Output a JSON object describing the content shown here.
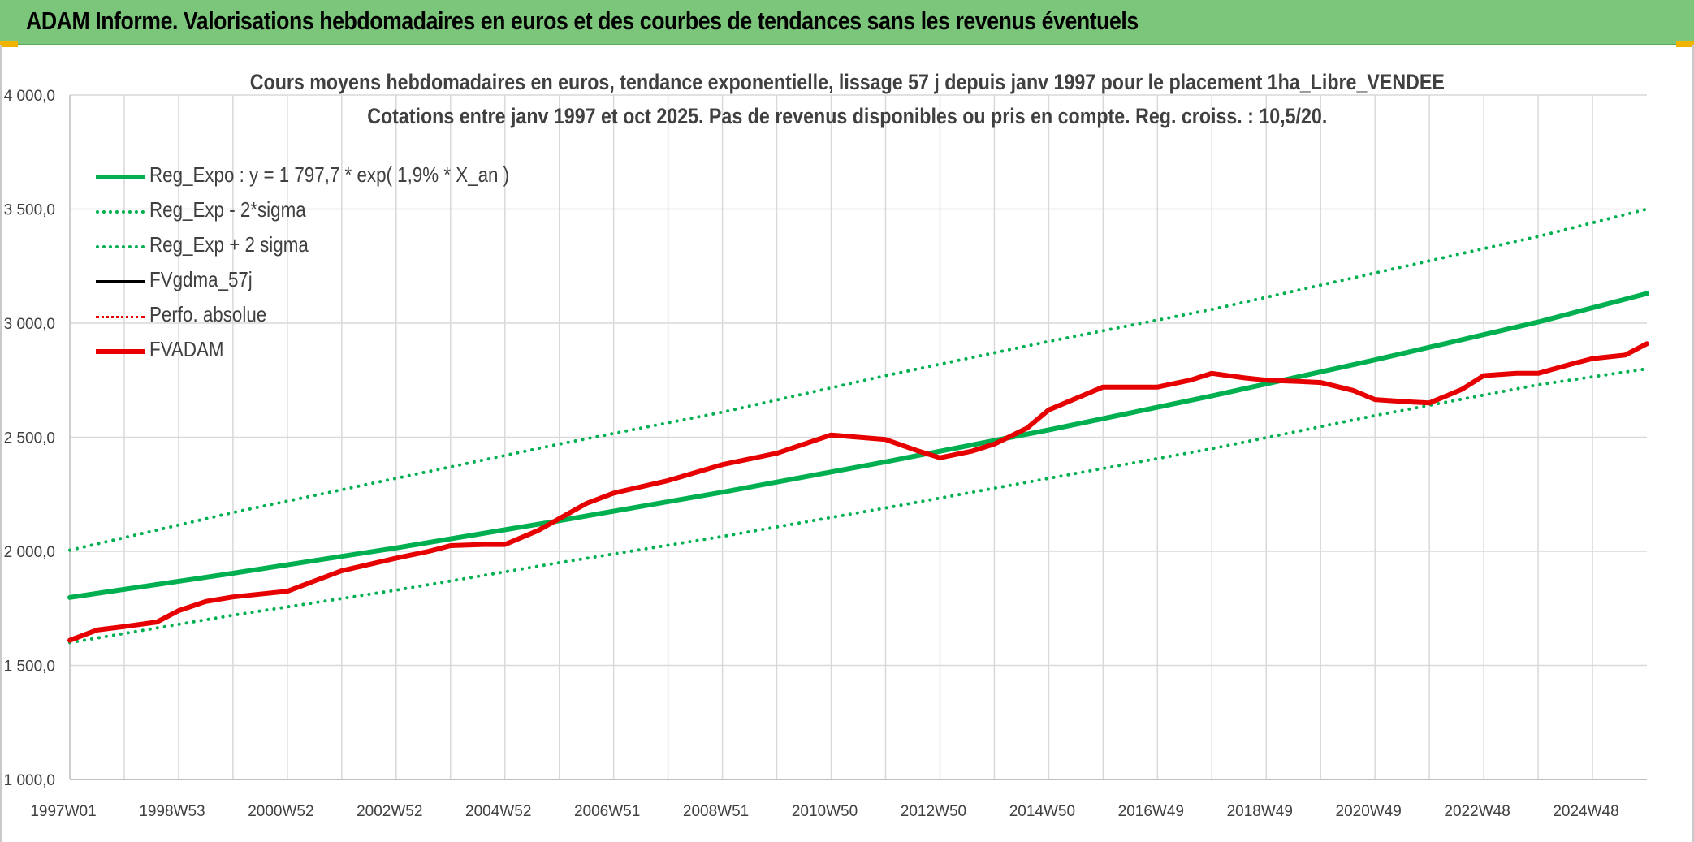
{
  "header": {
    "title": "ADAM Informe. Valorisations hebdomadaires en euros et des courbes de tendances sans les revenus éventuels"
  },
  "colors": {
    "header_bg": "#7bc67b",
    "regression": "#00b050",
    "fvadam": "#e60000",
    "perfo": "#e60000",
    "fvgdma": "#000000",
    "grid": "#d9d9d9"
  },
  "chart_data": {
    "type": "line",
    "title": [
      "Cours moyens hebdomadaires en euros, tendance exponentielle, lissage 57 j depuis janv 1997 pour le placement 1ha_Libre_VENDEE",
      "Cotations entre janv 1997 et oct 2025. Pas de revenus disponibles ou pris en compte. Reg. croiss. : 10,5/20."
    ],
    "xlabel": "",
    "ylabel": "",
    "ylim": [
      1000,
      4000
    ],
    "xlim": [
      1997.0,
      2026.0
    ],
    "y_ticks": [
      1000,
      1500,
      2000,
      2500,
      3000,
      3500,
      4000
    ],
    "y_tick_labels": [
      "1 000,0",
      "1 500,0",
      "2 000,0",
      "2 500,0",
      "3 000,0",
      "3 500,0",
      "4 000,0"
    ],
    "x_gridlines": [
      1998.0,
      1999.0,
      2000.0,
      2001.0,
      2002.0,
      2003.0,
      2004.0,
      2005.0,
      2006.0,
      2007.0,
      2008.0,
      2009.0,
      2010.0,
      2011.0,
      2012.0,
      2013.0,
      2014.0,
      2015.0,
      2016.0,
      2017.0,
      2018.0,
      2019.0,
      2020.0,
      2021.0,
      2022.0,
      2023.0,
      2024.0,
      2025.0
    ],
    "x_ticks": [
      {
        "x": 1997.0,
        "label": "1997W01"
      },
      {
        "x": 1999.0,
        "label": "1998W53"
      },
      {
        "x": 2001.0,
        "label": "2000W52"
      },
      {
        "x": 2003.0,
        "label": "2002W52"
      },
      {
        "x": 2005.0,
        "label": "2004W52"
      },
      {
        "x": 2007.0,
        "label": "2006W51"
      },
      {
        "x": 2009.0,
        "label": "2008W51"
      },
      {
        "x": 2011.0,
        "label": "2010W50"
      },
      {
        "x": 2013.0,
        "label": "2012W50"
      },
      {
        "x": 2015.0,
        "label": "2014W50"
      },
      {
        "x": 2017.0,
        "label": "2016W49"
      },
      {
        "x": 2019.0,
        "label": "2018W49"
      },
      {
        "x": 2021.0,
        "label": "2020W49"
      },
      {
        "x": 2023.0,
        "label": "2022W48"
      },
      {
        "x": 2025.0,
        "label": "2024W48"
      }
    ],
    "legend": [
      {
        "label": "Reg_Expo : y = 1 797,7 * exp( 1,9% *  X_an )",
        "style": "solid",
        "color": "#00b050",
        "width": 6
      },
      {
        "label": "Reg_Exp - 2*sigma",
        "style": "dotted",
        "color": "#00b050",
        "width": 4
      },
      {
        "label": "Reg_Exp + 2 sigma",
        "style": "dotted",
        "color": "#00b050",
        "width": 4
      },
      {
        "label": "FVgdma_57j",
        "style": "solid",
        "color": "#000000",
        "width": 4
      },
      {
        "label": "Perfo. absolue",
        "style": "dotted",
        "color": "#e60000",
        "width": 3
      },
      {
        "label": "FVADAM",
        "style": "solid",
        "color": "#e60000",
        "width": 6
      }
    ],
    "series": [
      {
        "name": "Reg_Expo : y = 1 797,7 * exp( 1,9% *  X_an )",
        "style": "solid",
        "color": "#00b050",
        "width": 6,
        "x": [
          1997.0,
          2000.0,
          2003.0,
          2006.0,
          2009.0,
          2012.0,
          2015.0,
          2018.0,
          2021.0,
          2024.0,
          2026.0
        ],
        "values": [
          1798,
          1904,
          2015,
          2134,
          2259,
          2392,
          2532,
          2681,
          2839,
          3005,
          3130
        ]
      },
      {
        "name": "Reg_Exp - 2*sigma",
        "style": "dotted",
        "color": "#00b050",
        "width": 4,
        "x": [
          1997.0,
          2000.0,
          2003.0,
          2006.0,
          2009.0,
          2012.0,
          2015.0,
          2018.0,
          2021.0,
          2024.0,
          2026.0
        ],
        "values": [
          1600,
          1720,
          1830,
          1950,
          2065,
          2190,
          2320,
          2450,
          2595,
          2730,
          2800
        ]
      },
      {
        "name": "Reg_Exp + 2 sigma",
        "style": "dotted",
        "color": "#00b050",
        "width": 4,
        "x": [
          1997.0,
          2000.0,
          2003.0,
          2006.0,
          2009.0,
          2012.0,
          2015.0,
          2018.0,
          2021.0,
          2024.0,
          2026.0
        ],
        "values": [
          2005,
          2170,
          2320,
          2470,
          2610,
          2770,
          2920,
          3060,
          3220,
          3380,
          3500
        ]
      },
      {
        "name": "FVADAM",
        "style": "solid",
        "color": "#e60000",
        "width": 6,
        "x": [
          1997.0,
          1997.5,
          1998.0,
          1998.6,
          1999.0,
          1999.5,
          2000.0,
          2001.0,
          2001.5,
          2002.0,
          2003.0,
          2003.6,
          2004.0,
          2004.6,
          2005.0,
          2005.6,
          2006.5,
          2007.0,
          2008.0,
          2009.0,
          2009.6,
          2010.0,
          2011.0,
          2011.5,
          2012.0,
          2012.6,
          2013.0,
          2013.6,
          2014.0,
          2014.6,
          2015.0,
          2016.0,
          2016.6,
          2017.0,
          2017.6,
          2018.0,
          2018.6,
          2019.0,
          2019.6,
          2020.0,
          2020.6,
          2021.0,
          2021.6,
          2022.0,
          2022.6,
          2023.0,
          2023.6,
          2024.0,
          2024.6,
          2025.0,
          2025.6,
          2026.0
        ],
        "values": [
          1610,
          1655,
          1670,
          1690,
          1740,
          1780,
          1800,
          1825,
          1870,
          1915,
          1970,
          2000,
          2025,
          2030,
          2030,
          2090,
          2210,
          2255,
          2310,
          2380,
          2410,
          2430,
          2510,
          2500,
          2490,
          2440,
          2410,
          2440,
          2470,
          2540,
          2620,
          2720,
          2720,
          2720,
          2750,
          2780,
          2760,
          2750,
          2745,
          2740,
          2705,
          2665,
          2655,
          2650,
          2710,
          2770,
          2780,
          2780,
          2820,
          2845,
          2860,
          2910
        ]
      }
    ]
  }
}
